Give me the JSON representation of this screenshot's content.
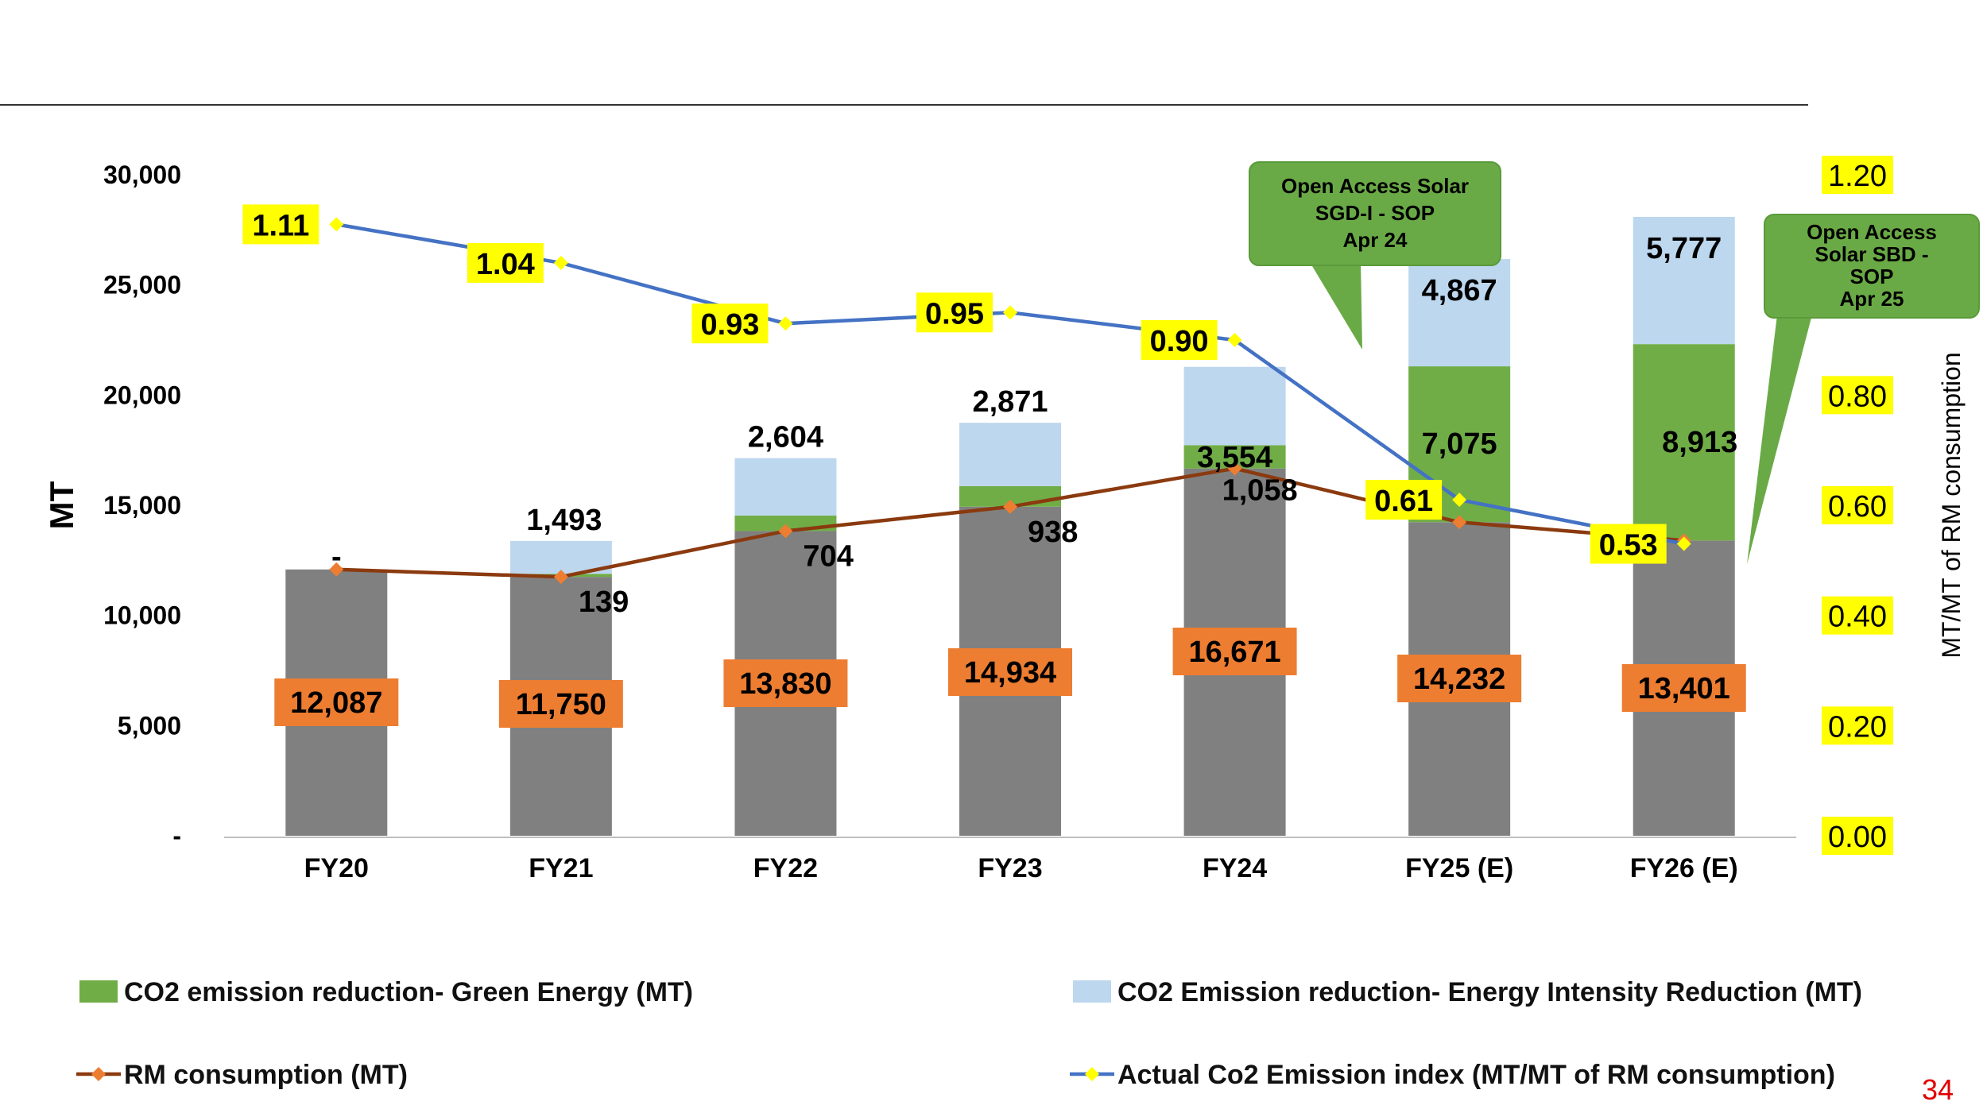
{
  "chart_data": {
    "type": "bar",
    "categories": [
      "FY20",
      "FY21",
      "FY22",
      "FY23",
      "FY24",
      "FY25 (E)",
      "FY26 (E)"
    ],
    "ylabel": "MT",
    "y2label": "MT/MT of RM consumption",
    "ylim": [
      0,
      30000
    ],
    "y2lim": [
      0,
      1.2
    ],
    "yticks": [
      "-",
      "5,000",
      "10,000",
      "15,000",
      "20,000",
      "25,000",
      "30,000"
    ],
    "y2ticks": [
      "0.00",
      "0.20",
      "0.40",
      "0.60",
      "0.80",
      "1.00",
      "1.20"
    ],
    "stacked": true,
    "series": [
      {
        "name": "",
        "type": "bar",
        "color": "#808080",
        "values": [
          12087,
          11750,
          13830,
          14934,
          16671,
          14232,
          13401
        ]
      },
      {
        "name": "CO2 emission reduction- Green Energy (MT)",
        "type": "bar",
        "color": "#70ad47",
        "values": [
          0,
          139,
          704,
          938,
          1058,
          7075,
          8913
        ],
        "labels": [
          "",
          "139",
          "704",
          "938",
          "1,058",
          "7,075",
          "8,913"
        ]
      },
      {
        "name": "CO2 Emission reduction- Energy Intensity Reduction (MT)",
        "type": "bar",
        "color": "#bdd7ee",
        "values": [
          0,
          1493,
          2604,
          2871,
          3554,
          4867,
          5777
        ],
        "labels": [
          "-",
          "1,493",
          "2,604",
          "2,871",
          "3,554",
          "4,867",
          "5,777"
        ]
      },
      {
        "name": "RM consumption (MT)",
        "type": "line",
        "axis": "left",
        "color": "#8b3a0f",
        "marker_color": "#ed7d31",
        "values": [
          12087,
          11750,
          13830,
          14934,
          16671,
          14232,
          13401
        ],
        "labels": [
          "12,087",
          "11,750",
          "13,830",
          "14,934",
          "16,671",
          "14,232",
          "13,401"
        ]
      },
      {
        "name": "Actual Co2 Emission index (MT/MT of RM consumption)",
        "type": "line",
        "axis": "right",
        "color": "#4472c4",
        "marker_color": "#ffff00",
        "values": [
          1.11,
          1.04,
          0.93,
          0.95,
          0.9,
          0.61,
          0.53
        ],
        "labels": [
          "1.11",
          "1.04",
          "0.93",
          "0.95",
          "0.90",
          "0.61",
          "0.53"
        ]
      }
    ],
    "annotations": [
      {
        "category": "FY25 (E)",
        "lines": [
          "Open Access Solar",
          "SGD-I - SOP",
          "Apr 24"
        ]
      },
      {
        "category": "FY26 (E)",
        "lines": [
          "Open Access",
          "Solar SBD -",
          "SOP",
          "Apr 25"
        ]
      }
    ],
    "legend_position": "bottom",
    "grid": false
  },
  "page_number": "34",
  "colors": {
    "rm_label_bg": "#ed7d31",
    "index_label_bg": "#ffff00",
    "right_tick_bg": "#ffff00",
    "callout_fill": "#6aaa46"
  }
}
